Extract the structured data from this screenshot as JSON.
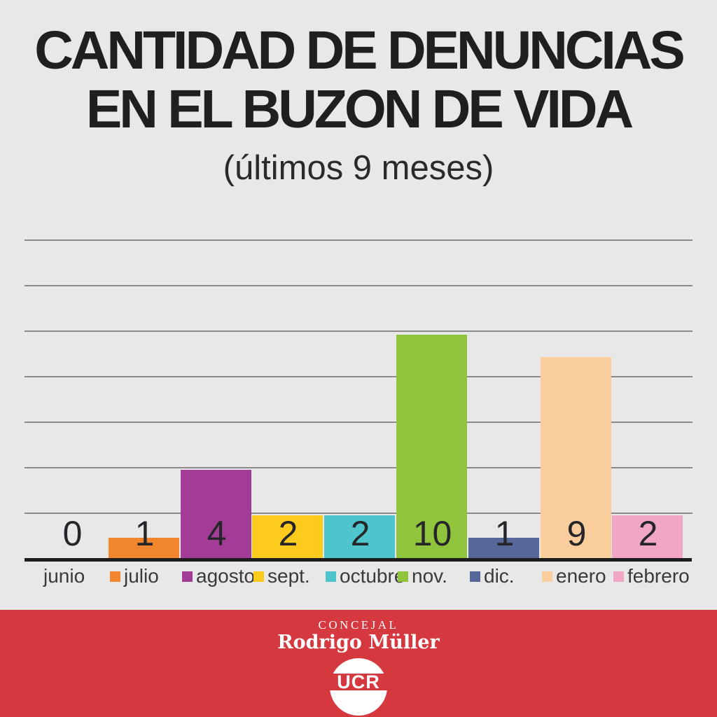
{
  "title": {
    "line1": "CANTIDAD DE DENUNCIAS",
    "line2": "EN EL BUZON DE VIDA",
    "subtitle": "(últimos 9 meses)"
  },
  "chart_data": {
    "type": "bar",
    "title": "CANTIDAD DE DENUNCIAS EN EL BUZON DE VIDA",
    "subtitle": "(últimos 9 meses)",
    "categories": [
      "junio",
      "julio",
      "agosto",
      "sept.",
      "octubre",
      "nov.",
      "dic.",
      "enero",
      "febrero"
    ],
    "values": [
      0,
      1,
      4,
      2,
      2,
      10,
      1,
      9,
      2
    ],
    "value_labels": [
      "0",
      "1",
      "4",
      "2",
      "2",
      "10",
      "1",
      "9",
      "2"
    ],
    "bar_colors": [
      "#e9e8e9",
      "#f1862c",
      "#a23c96",
      "#fdcb1e",
      "#4ec4cd",
      "#90c43c",
      "#56679a",
      "#facd9d",
      "#f2a6c5"
    ],
    "legend_swatches": [
      false,
      true,
      true,
      true,
      true,
      true,
      true,
      true,
      true
    ],
    "xlabel": "",
    "ylabel": "",
    "ylim": [
      0,
      14
    ],
    "gridline_values": [
      2,
      4,
      6,
      8,
      10,
      12,
      14
    ],
    "grid": true,
    "legend_position": "below-axis",
    "value_label_position": "above-baseline"
  },
  "style_colors": {
    "background": "#e9e8e9",
    "gridline": "#8a8a8a",
    "axis": "#1d1d1d",
    "text": "#1f1f1f",
    "banner": "#d5393f",
    "banner_text": "#ffffff"
  },
  "footer": {
    "role": "CONCEJAL",
    "name": "Rodrigo Müller",
    "logo_text": "UCR"
  }
}
